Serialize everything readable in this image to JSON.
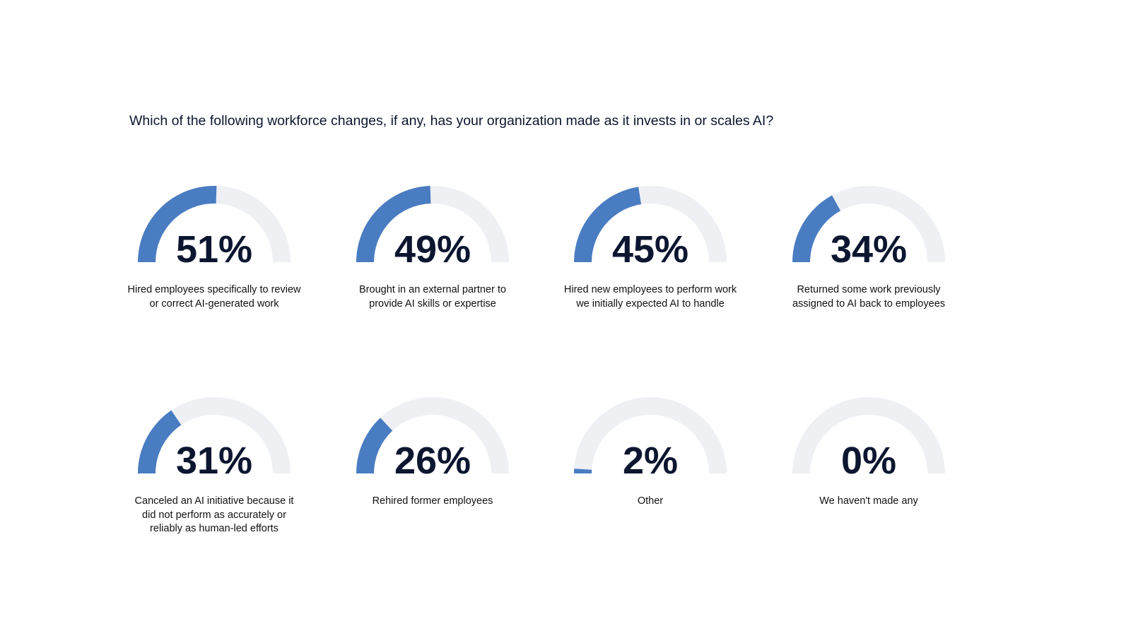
{
  "chart_data": {
    "type": "gauge",
    "title": "Which of the following workforce changes, if any, has your organization made as it invests in or scales AI?",
    "categories": [
      "Hired employees specifically to review or correct AI-generated work",
      "Brought in an external partner to provide AI skills or expertise",
      "Hired new employees to perform work we initially expected AI to handle",
      "Returned some work previously assigned to AI back to employees",
      "Canceled an AI initiative because it did not perform as accurately or reliably as human-led efforts",
      "Rehired former employees",
      "Other",
      "We haven't made any"
    ],
    "values": [
      51,
      49,
      45,
      34,
      31,
      26,
      2,
      0
    ],
    "value_labels": [
      "51%",
      "49%",
      "45%",
      "34%",
      "31%",
      "26%",
      "2%",
      "0%"
    ],
    "ylim": [
      0,
      100
    ],
    "color": "#4a7cc1",
    "track_color": "#eef0f4"
  }
}
